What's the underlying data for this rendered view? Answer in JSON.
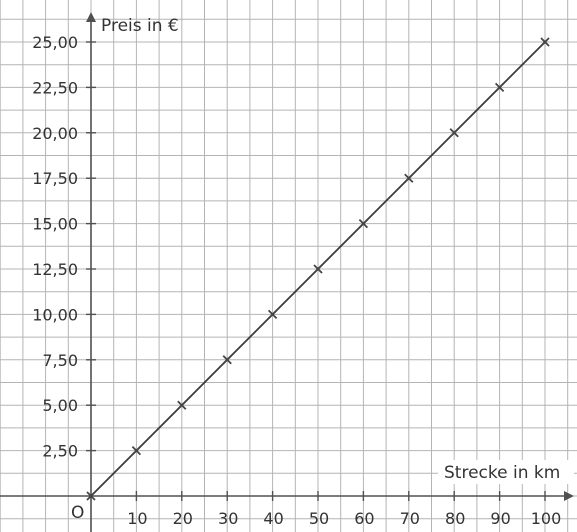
{
  "chart_data": {
    "type": "line",
    "xlabel": "Strecke in km",
    "ylabel": "Preis in €",
    "origin_label": "O",
    "x_ticks": [
      "10",
      "20",
      "30",
      "40",
      "50",
      "60",
      "70",
      "80",
      "90",
      "100"
    ],
    "y_ticks": [
      "2,50",
      "5,00",
      "7,50",
      "10,00",
      "12,50",
      "15,00",
      "17,50",
      "20,00",
      "22,50",
      "25,00"
    ],
    "xlim": [
      -20,
      105
    ],
    "ylim": [
      -0.75,
      26.5
    ],
    "grid": true,
    "series": [
      {
        "x": [
          0,
          10,
          20,
          30,
          40,
          50,
          60,
          70,
          80,
          90,
          100
        ],
        "y": [
          0,
          2.5,
          5,
          7.5,
          10,
          12.5,
          15,
          17.5,
          20,
          22.5,
          25
        ]
      }
    ],
    "colors": {
      "grid": "#b4b4b4",
      "axis": "#505050",
      "line": "#3c3c3c",
      "marker": "#444444",
      "text": "#333333"
    }
  }
}
